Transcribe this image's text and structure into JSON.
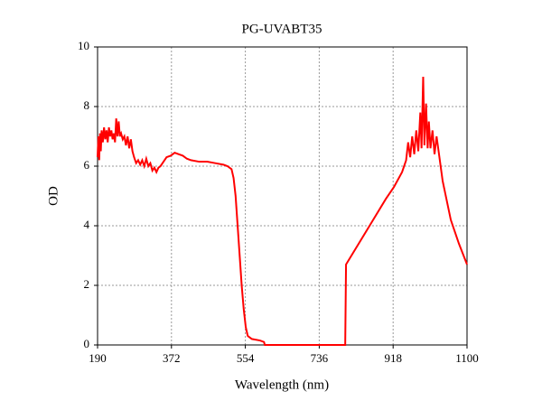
{
  "chart_data": {
    "type": "line",
    "title": "PG-UVABT35",
    "xlabel": "Wavelength (nm)",
    "ylabel": "OD",
    "x": [
      190,
      192,
      194,
      196,
      198,
      200,
      203,
      206,
      209,
      212,
      215,
      218,
      221,
      224,
      227,
      230,
      233,
      236,
      239,
      242,
      245,
      248,
      252,
      256,
      260,
      264,
      268,
      272,
      276,
      280,
      285,
      290,
      295,
      300,
      305,
      310,
      315,
      320,
      325,
      330,
      335,
      340,
      345,
      350,
      360,
      370,
      380,
      390,
      400,
      410,
      420,
      440,
      460,
      480,
      500,
      510,
      520,
      525,
      530,
      535,
      540,
      545,
      550,
      555,
      560,
      570,
      590,
      600,
      602,
      800,
      802,
      860,
      900,
      920,
      940,
      950,
      955,
      960,
      965,
      970,
      975,
      980,
      985,
      988,
      992,
      995,
      999,
      1003,
      1006,
      1010,
      1015,
      1020,
      1025,
      1030,
      1040,
      1060,
      1080,
      1100
    ],
    "series": [
      {
        "name": "OD",
        "color": "#ff0000",
        "values": [
          6.3,
          7.0,
          6.2,
          7.1,
          6.5,
          7.2,
          6.8,
          7.3,
          6.9,
          7.2,
          6.8,
          7.3,
          7.0,
          7.2,
          6.9,
          7.1,
          6.8,
          7.6,
          7.0,
          7.5,
          7.0,
          7.1,
          6.9,
          7.0,
          6.7,
          7.0,
          6.6,
          6.9,
          6.5,
          6.3,
          6.1,
          6.2,
          6.05,
          6.2,
          6.0,
          6.25,
          6.0,
          6.1,
          5.85,
          5.95,
          5.8,
          5.95,
          6.0,
          6.1,
          6.3,
          6.35,
          6.45,
          6.4,
          6.35,
          6.25,
          6.2,
          6.15,
          6.15,
          6.1,
          6.05,
          6.0,
          5.9,
          5.6,
          5.0,
          4.0,
          3.0,
          2.0,
          1.2,
          0.6,
          0.3,
          0.2,
          0.15,
          0.1,
          0,
          0,
          2.7,
          4.0,
          4.9,
          5.3,
          5.8,
          6.2,
          6.8,
          6.3,
          7.0,
          6.4,
          7.2,
          6.5,
          7.8,
          6.6,
          9.0,
          6.7,
          8.1,
          6.6,
          7.5,
          6.6,
          7.2,
          6.4,
          7.0,
          6.5,
          5.5,
          4.2,
          3.4,
          2.7
        ]
      }
    ],
    "xlim": [
      190,
      1100
    ],
    "xticks": [
      190,
      372,
      554,
      736,
      918,
      1100
    ],
    "ylim": [
      0,
      10
    ],
    "yticks": [
      0,
      2,
      4,
      6,
      8,
      10
    ],
    "grid": true
  }
}
